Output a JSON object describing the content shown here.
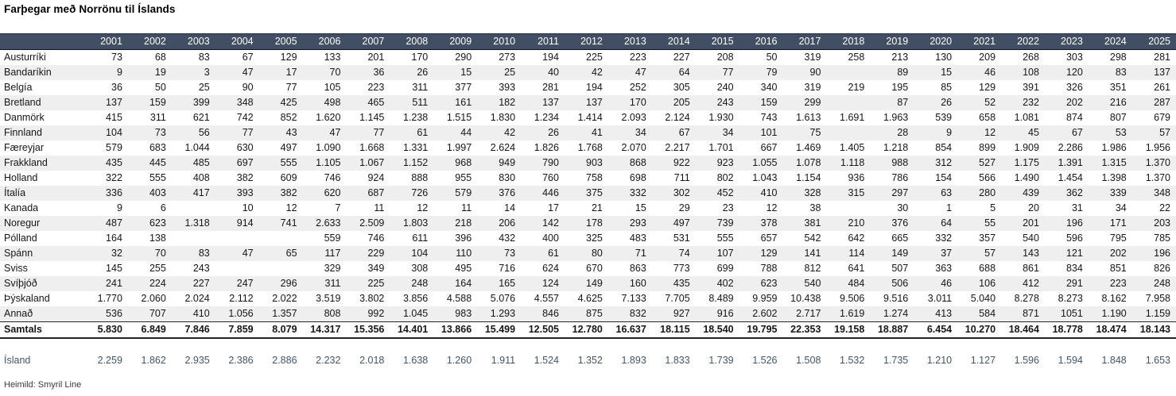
{
  "page": {
    "title": "Farþegar með Norrönu til Íslands",
    "source": "Heimild: Smyril Line"
  },
  "colors": {
    "header_bg": "#414e63",
    "header_text": "#ffffff",
    "band_row_bg": "#efefef",
    "totals_border": "#1c2530",
    "island_text": "#44546a",
    "body_text": "#161616"
  },
  "chart_data": {
    "type": "table",
    "title": "Farþegar með Norrönu til Íslands",
    "source": "Heimild: Smyril Line",
    "years": [
      "2001",
      "2002",
      "2003",
      "2004",
      "2005",
      "2006",
      "2007",
      "2008",
      "2009",
      "2010",
      "2011",
      "2012",
      "2013",
      "2014",
      "2015",
      "2016",
      "2017",
      "2018",
      "2019",
      "2020",
      "2021",
      "2022",
      "2023",
      "2024",
      "2025"
    ],
    "rows": [
      {
        "label": "Austurríki",
        "values": [
          "73",
          "68",
          "83",
          "67",
          "129",
          "133",
          "201",
          "170",
          "290",
          "273",
          "194",
          "225",
          "223",
          "227",
          "208",
          "50",
          "319",
          "258",
          "213",
          "130",
          "209",
          "268",
          "303",
          "298",
          "281"
        ]
      },
      {
        "label": "Bandaríkin",
        "values": [
          "9",
          "19",
          "3",
          "47",
          "17",
          "70",
          "36",
          "26",
          "15",
          "25",
          "40",
          "42",
          "47",
          "64",
          "77",
          "79",
          "90",
          "",
          "89",
          "15",
          "46",
          "108",
          "120",
          "83",
          "137"
        ]
      },
      {
        "label": "Belgía",
        "values": [
          "36",
          "50",
          "25",
          "90",
          "77",
          "105",
          "223",
          "311",
          "377",
          "393",
          "281",
          "194",
          "252",
          "305",
          "240",
          "340",
          "319",
          "219",
          "195",
          "85",
          "129",
          "391",
          "326",
          "351",
          "261"
        ]
      },
      {
        "label": "Bretland",
        "values": [
          "137",
          "159",
          "399",
          "348",
          "425",
          "498",
          "465",
          "511",
          "161",
          "182",
          "137",
          "137",
          "170",
          "205",
          "243",
          "159",
          "299",
          "",
          "87",
          "26",
          "52",
          "232",
          "202",
          "216",
          "287"
        ]
      },
      {
        "label": "Danmörk",
        "values": [
          "415",
          "311",
          "621",
          "742",
          "852",
          "1.620",
          "1.145",
          "1.238",
          "1.515",
          "1.830",
          "1.234",
          "1.414",
          "2.093",
          "2.124",
          "1.930",
          "743",
          "1.613",
          "1.691",
          "1.963",
          "539",
          "658",
          "1.081",
          "874",
          "807",
          "679"
        ]
      },
      {
        "label": "Finnland",
        "values": [
          "104",
          "73",
          "56",
          "77",
          "43",
          "47",
          "77",
          "61",
          "44",
          "42",
          "26",
          "41",
          "34",
          "67",
          "34",
          "101",
          "75",
          "",
          "28",
          "9",
          "12",
          "45",
          "67",
          "53",
          "57"
        ]
      },
      {
        "label": "Færeyjar",
        "values": [
          "579",
          "683",
          "1.044",
          "630",
          "497",
          "1.090",
          "1.668",
          "1.331",
          "1.997",
          "2.624",
          "1.826",
          "1.768",
          "2.070",
          "2.217",
          "1.701",
          "667",
          "1.469",
          "1.405",
          "1.218",
          "854",
          "899",
          "1.909",
          "2.286",
          "1.986",
          "1.956"
        ]
      },
      {
        "label": "Frakkland",
        "values": [
          "435",
          "445",
          "485",
          "697",
          "555",
          "1.105",
          "1.067",
          "1.152",
          "968",
          "949",
          "790",
          "903",
          "868",
          "922",
          "923",
          "1.055",
          "1.078",
          "1.118",
          "988",
          "312",
          "527",
          "1.175",
          "1.391",
          "1.315",
          "1.370"
        ]
      },
      {
        "label": "Holland",
        "values": [
          "322",
          "555",
          "408",
          "382",
          "609",
          "746",
          "924",
          "888",
          "955",
          "830",
          "760",
          "758",
          "698",
          "711",
          "802",
          "1.043",
          "1.154",
          "936",
          "786",
          "154",
          "566",
          "1.490",
          "1.454",
          "1.398",
          "1.370"
        ]
      },
      {
        "label": "Ítalía",
        "values": [
          "336",
          "403",
          "417",
          "393",
          "382",
          "620",
          "687",
          "726",
          "579",
          "376",
          "446",
          "375",
          "332",
          "302",
          "452",
          "410",
          "328",
          "315",
          "297",
          "63",
          "280",
          "439",
          "362",
          "339",
          "348"
        ]
      },
      {
        "label": "Kanada",
        "values": [
          "9",
          "6",
          "",
          "10",
          "12",
          "7",
          "11",
          "12",
          "11",
          "14",
          "17",
          "21",
          "15",
          "29",
          "23",
          "12",
          "38",
          "",
          "30",
          "1",
          "5",
          "20",
          "31",
          "34",
          "22"
        ]
      },
      {
        "label": "Noregur",
        "values": [
          "487",
          "623",
          "1.318",
          "914",
          "741",
          "2.633",
          "2.509",
          "1.803",
          "218",
          "206",
          "142",
          "178",
          "293",
          "497",
          "739",
          "378",
          "381",
          "210",
          "376",
          "64",
          "55",
          "201",
          "196",
          "171",
          "203"
        ]
      },
      {
        "label": "Pólland",
        "values": [
          "164",
          "138",
          "",
          "",
          "",
          "559",
          "746",
          "611",
          "396",
          "432",
          "400",
          "325",
          "483",
          "531",
          "555",
          "657",
          "542",
          "642",
          "665",
          "332",
          "357",
          "540",
          "596",
          "795",
          "785"
        ]
      },
      {
        "label": "Spánn",
        "values": [
          "32",
          "70",
          "83",
          "47",
          "65",
          "117",
          "229",
          "104",
          "110",
          "73",
          "61",
          "80",
          "71",
          "74",
          "107",
          "129",
          "141",
          "114",
          "149",
          "37",
          "57",
          "143",
          "121",
          "202",
          "196"
        ]
      },
      {
        "label": "Sviss",
        "values": [
          "145",
          "255",
          "243",
          "",
          "",
          "329",
          "349",
          "308",
          "495",
          "716",
          "624",
          "670",
          "863",
          "773",
          "699",
          "788",
          "812",
          "641",
          "507",
          "363",
          "688",
          "861",
          "834",
          "851",
          "826"
        ]
      },
      {
        "label": "Svíþjóð",
        "values": [
          "241",
          "224",
          "227",
          "247",
          "296",
          "311",
          "225",
          "248",
          "164",
          "165",
          "124",
          "149",
          "160",
          "435",
          "402",
          "623",
          "540",
          "484",
          "506",
          "46",
          "106",
          "412",
          "291",
          "223",
          "248"
        ]
      },
      {
        "label": "Þýskaland",
        "values": [
          "1.770",
          "2.060",
          "2.024",
          "2.112",
          "2.022",
          "3.519",
          "3.802",
          "3.856",
          "4.588",
          "5.076",
          "4.557",
          "4.625",
          "7.133",
          "7.705",
          "8.489",
          "9.959",
          "10.438",
          "9.506",
          "9.516",
          "3.011",
          "5.040",
          "8.278",
          "8.273",
          "8.162",
          "7.958"
        ]
      },
      {
        "label": "Annað",
        "values": [
          "536",
          "707",
          "410",
          "1.056",
          "1.357",
          "808",
          "992",
          "1.045",
          "983",
          "1.293",
          "846",
          "875",
          "832",
          "927",
          "916",
          "2.602",
          "2.717",
          "1.619",
          "1.274",
          "413",
          "584",
          "871",
          "1051",
          "1.190",
          "1.159"
        ]
      }
    ],
    "totals": {
      "label": "Samtals",
      "values": [
        "5.830",
        "6.849",
        "7.846",
        "7.859",
        "8.079",
        "14.317",
        "15.356",
        "14.401",
        "13.866",
        "15.499",
        "12.505",
        "12.780",
        "16.637",
        "18.115",
        "18.540",
        "19.795",
        "22.353",
        "19.158",
        "18.887",
        "6.454",
        "10.270",
        "18.464",
        "18.778",
        "18.474",
        "18.143"
      ]
    },
    "island": {
      "label": "Ísland",
      "values": [
        "2.259",
        "1.862",
        "2.935",
        "2.386",
        "2.886",
        "2.232",
        "2.018",
        "1.638",
        "1.260",
        "1.911",
        "1.524",
        "1.352",
        "1.893",
        "1.833",
        "1.739",
        "1.526",
        "1.508",
        "1.532",
        "1.735",
        "1.210",
        "1.127",
        "1.596",
        "1.594",
        "1.848",
        "1.653"
      ]
    }
  }
}
